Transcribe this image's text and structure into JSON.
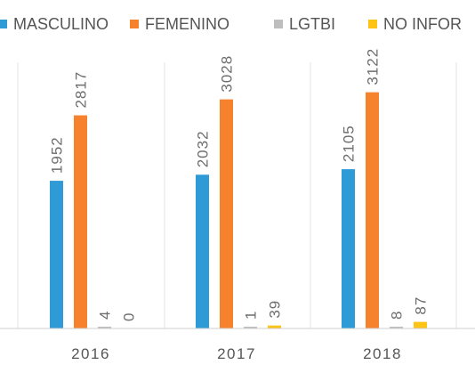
{
  "chart_data": {
    "type": "bar",
    "categories": [
      "2016",
      "2017",
      "2018"
    ],
    "series": [
      {
        "name": "MASCULINO",
        "color": "#2E9BD6",
        "values": [
          1952,
          2032,
          2105
        ]
      },
      {
        "name": "FEMENINO",
        "color": "#F7822D",
        "values": [
          2817,
          3028,
          3122
        ]
      },
      {
        "name": "LGTBI",
        "color": "#BEBEBE",
        "values": [
          4,
          1,
          8
        ]
      },
      {
        "name": "NO INFOR",
        "color": "#FDC315",
        "values": [
          0,
          39,
          87
        ]
      }
    ],
    "ylim": [
      0,
      3400
    ],
    "grid": "vertical separators between categories",
    "legend_position": "top"
  }
}
